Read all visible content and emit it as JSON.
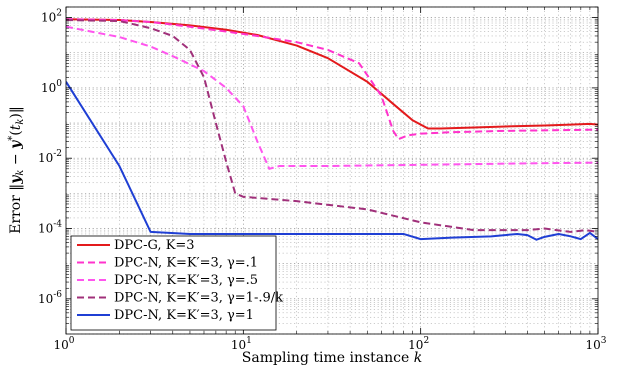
{
  "chart_data": {
    "type": "line",
    "xlabel": "Sampling time instance k",
    "ylabel": "Error ‖y_k − y*(t_k)‖",
    "x_scale": "log",
    "y_scale": "log",
    "xlim": [
      1,
      1000
    ],
    "ylim": [
      1e-07,
      200
    ],
    "x_ticks": [
      {
        "value": 1,
        "base": "10",
        "exp": "0"
      },
      {
        "value": 10,
        "base": "10",
        "exp": "1"
      },
      {
        "value": 100,
        "base": "10",
        "exp": "2"
      },
      {
        "value": 1000,
        "base": "10",
        "exp": "3"
      }
    ],
    "y_ticks": [
      {
        "value": 1e-06,
        "base": "10",
        "exp": "-6"
      },
      {
        "value": 0.0001,
        "base": "10",
        "exp": "-4"
      },
      {
        "value": 0.01,
        "base": "10",
        "exp": "-2"
      },
      {
        "value": 1,
        "base": "10",
        "exp": "0"
      },
      {
        "value": 100,
        "base": "10",
        "exp": "2"
      }
    ],
    "grid": true,
    "legend_position": "bottom-left",
    "series": [
      {
        "name": "DPC-G, K=3",
        "color": "#e31a1c",
        "dash": "solid",
        "points": [
          [
            1,
            90
          ],
          [
            2,
            85
          ],
          [
            3,
            75
          ],
          [
            5,
            60
          ],
          [
            8,
            45
          ],
          [
            12,
            32
          ],
          [
            20,
            16
          ],
          [
            30,
            7
          ],
          [
            50,
            1.5
          ],
          [
            70,
            0.35
          ],
          [
            90,
            0.12
          ],
          [
            110,
            0.07
          ],
          [
            130,
            0.07
          ],
          [
            200,
            0.075
          ],
          [
            300,
            0.08
          ],
          [
            500,
            0.085
          ],
          [
            700,
            0.09
          ],
          [
            900,
            0.095
          ],
          [
            1000,
            0.09
          ]
        ]
      },
      {
        "name": "DPC-N, K=K′=3, γ=.1",
        "color": "#ff33cc",
        "dash": "dashed",
        "points": [
          [
            1,
            90
          ],
          [
            2,
            85
          ],
          [
            3,
            75
          ],
          [
            5,
            55
          ],
          [
            8,
            40
          ],
          [
            12,
            30
          ],
          [
            20,
            20
          ],
          [
            30,
            12
          ],
          [
            45,
            5
          ],
          [
            60,
            0.6
          ],
          [
            70,
            0.06
          ],
          [
            75,
            0.035
          ],
          [
            85,
            0.045
          ],
          [
            100,
            0.05
          ],
          [
            150,
            0.055
          ],
          [
            300,
            0.06
          ],
          [
            500,
            0.062
          ],
          [
            1000,
            0.065
          ]
        ]
      },
      {
        "name": "DPC-N, K=K′=3, γ=.5",
        "color": "#ff55ee",
        "dash": "dashed",
        "points": [
          [
            1,
            55
          ],
          [
            2,
            28
          ],
          [
            3,
            15
          ],
          [
            4,
            8
          ],
          [
            6,
            3
          ],
          [
            8,
            1
          ],
          [
            10,
            0.3
          ],
          [
            12,
            0.03
          ],
          [
            14,
            0.005
          ],
          [
            16,
            0.006
          ],
          [
            30,
            0.006
          ],
          [
            100,
            0.0065
          ],
          [
            300,
            0.007
          ],
          [
            1000,
            0.0075
          ]
        ]
      },
      {
        "name": "DPC-N, K=K′=3, γ=1-.9/k",
        "color": "#a0307a",
        "dash": "dashed",
        "points": [
          [
            1,
            85
          ],
          [
            2,
            80
          ],
          [
            3,
            50
          ],
          [
            4,
            30
          ],
          [
            5,
            12
          ],
          [
            6,
            2
          ],
          [
            7,
            0.1
          ],
          [
            8,
            0.008
          ],
          [
            9,
            0.001
          ],
          [
            10,
            0.0008
          ],
          [
            20,
            0.0006
          ],
          [
            50,
            0.00035
          ],
          [
            100,
            0.00015
          ],
          [
            200,
            9e-05
          ],
          [
            300,
            9e-05
          ],
          [
            400,
            9e-05
          ],
          [
            500,
            0.0001
          ],
          [
            700,
            8e-05
          ],
          [
            850,
            9e-05
          ],
          [
            1000,
            8e-05
          ]
        ]
      },
      {
        "name": "DPC-N, K=K′=3, γ=1",
        "color": "#1f3fd4",
        "dash": "solid",
        "points": [
          [
            1,
            1.5
          ],
          [
            2,
            0.006
          ],
          [
            3,
            8e-05
          ],
          [
            5,
            7e-05
          ],
          [
            10,
            7e-05
          ],
          [
            30,
            7e-05
          ],
          [
            80,
            7e-05
          ],
          [
            100,
            5e-05
          ],
          [
            150,
            5.5e-05
          ],
          [
            250,
            6e-05
          ],
          [
            350,
            7e-05
          ],
          [
            400,
            6.5e-05
          ],
          [
            450,
            4.8e-05
          ],
          [
            500,
            5.8e-05
          ],
          [
            600,
            7e-05
          ],
          [
            700,
            6e-05
          ],
          [
            800,
            5e-05
          ],
          [
            900,
            7.5e-05
          ],
          [
            1000,
            5e-05
          ]
        ]
      }
    ]
  }
}
